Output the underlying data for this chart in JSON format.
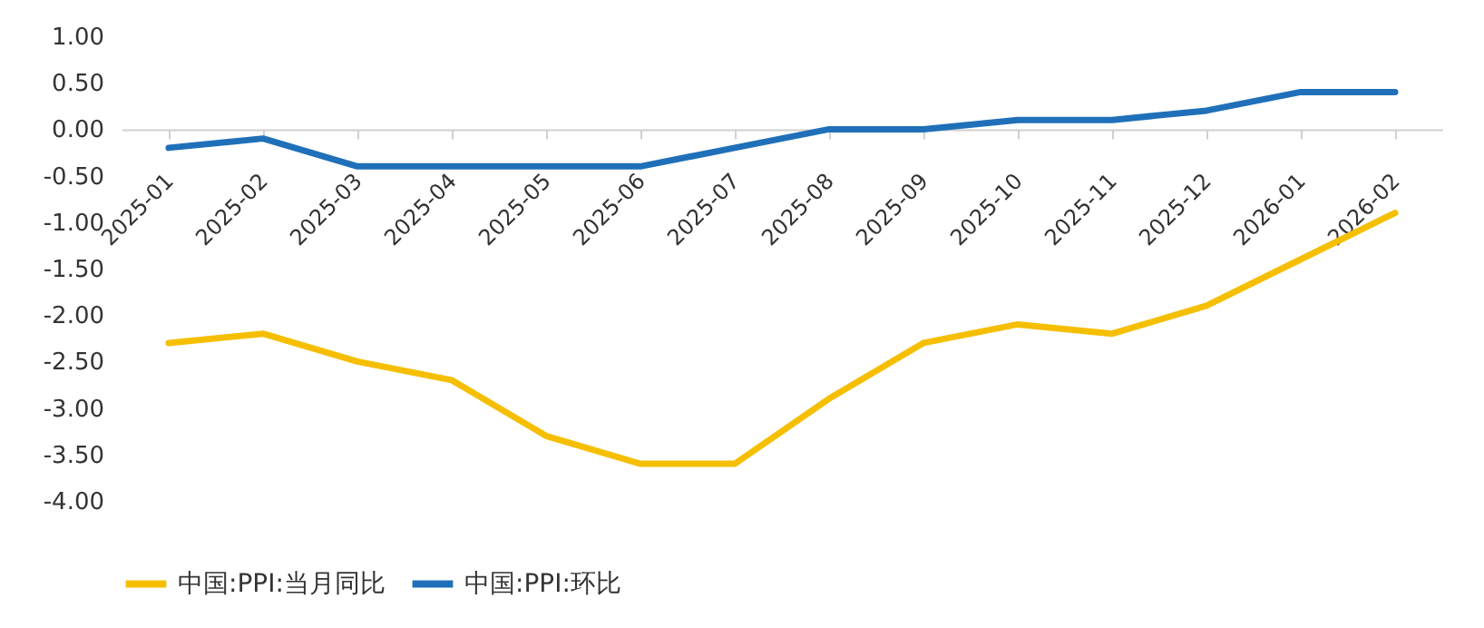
{
  "chart_data": {
    "type": "line",
    "categories": [
      "2025-01",
      "2025-02",
      "2025-03",
      "2025-04",
      "2025-05",
      "2025-06",
      "2025-07",
      "2025-08",
      "2025-09",
      "2025-10",
      "2025-11",
      "2025-12",
      "2026-01",
      "2026-02"
    ],
    "series": [
      {
        "name": "中国:PPI:当月同比",
        "color": "#f5bf00",
        "values": [
          -2.3,
          -2.2,
          -2.5,
          -2.7,
          -3.3,
          -3.6,
          -3.6,
          -2.9,
          -2.3,
          -2.1,
          -2.2,
          -1.9,
          -1.4,
          -0.9
        ]
      },
      {
        "name": "中国:PPI:环比",
        "color": "#1f70b8",
        "values": [
          -0.2,
          -0.1,
          -0.4,
          -0.4,
          -0.4,
          -0.4,
          -0.2,
          0.0,
          0.0,
          0.1,
          0.1,
          0.2,
          0.4,
          0.4
        ]
      }
    ],
    "ylim": [
      -4,
      1
    ],
    "yticks": [
      {
        "value": 1,
        "label": "1.00"
      },
      {
        "value": 0.5,
        "label": "0.50"
      },
      {
        "value": 0,
        "label": "0.00"
      },
      {
        "value": -0.5,
        "label": "-0.50"
      },
      {
        "value": -1,
        "label": "-1.00"
      },
      {
        "value": -1.5,
        "label": "-1.50"
      },
      {
        "value": -2,
        "label": "-2.00"
      },
      {
        "value": -2.5,
        "label": "-2.50"
      },
      {
        "value": -3,
        "label": "-3.00"
      },
      {
        "value": -3.5,
        "label": "-3.50"
      },
      {
        "value": -4,
        "label": "-4.00"
      }
    ],
    "grid": false,
    "legend": "bottom",
    "marker": "none",
    "line_style": "solid"
  }
}
